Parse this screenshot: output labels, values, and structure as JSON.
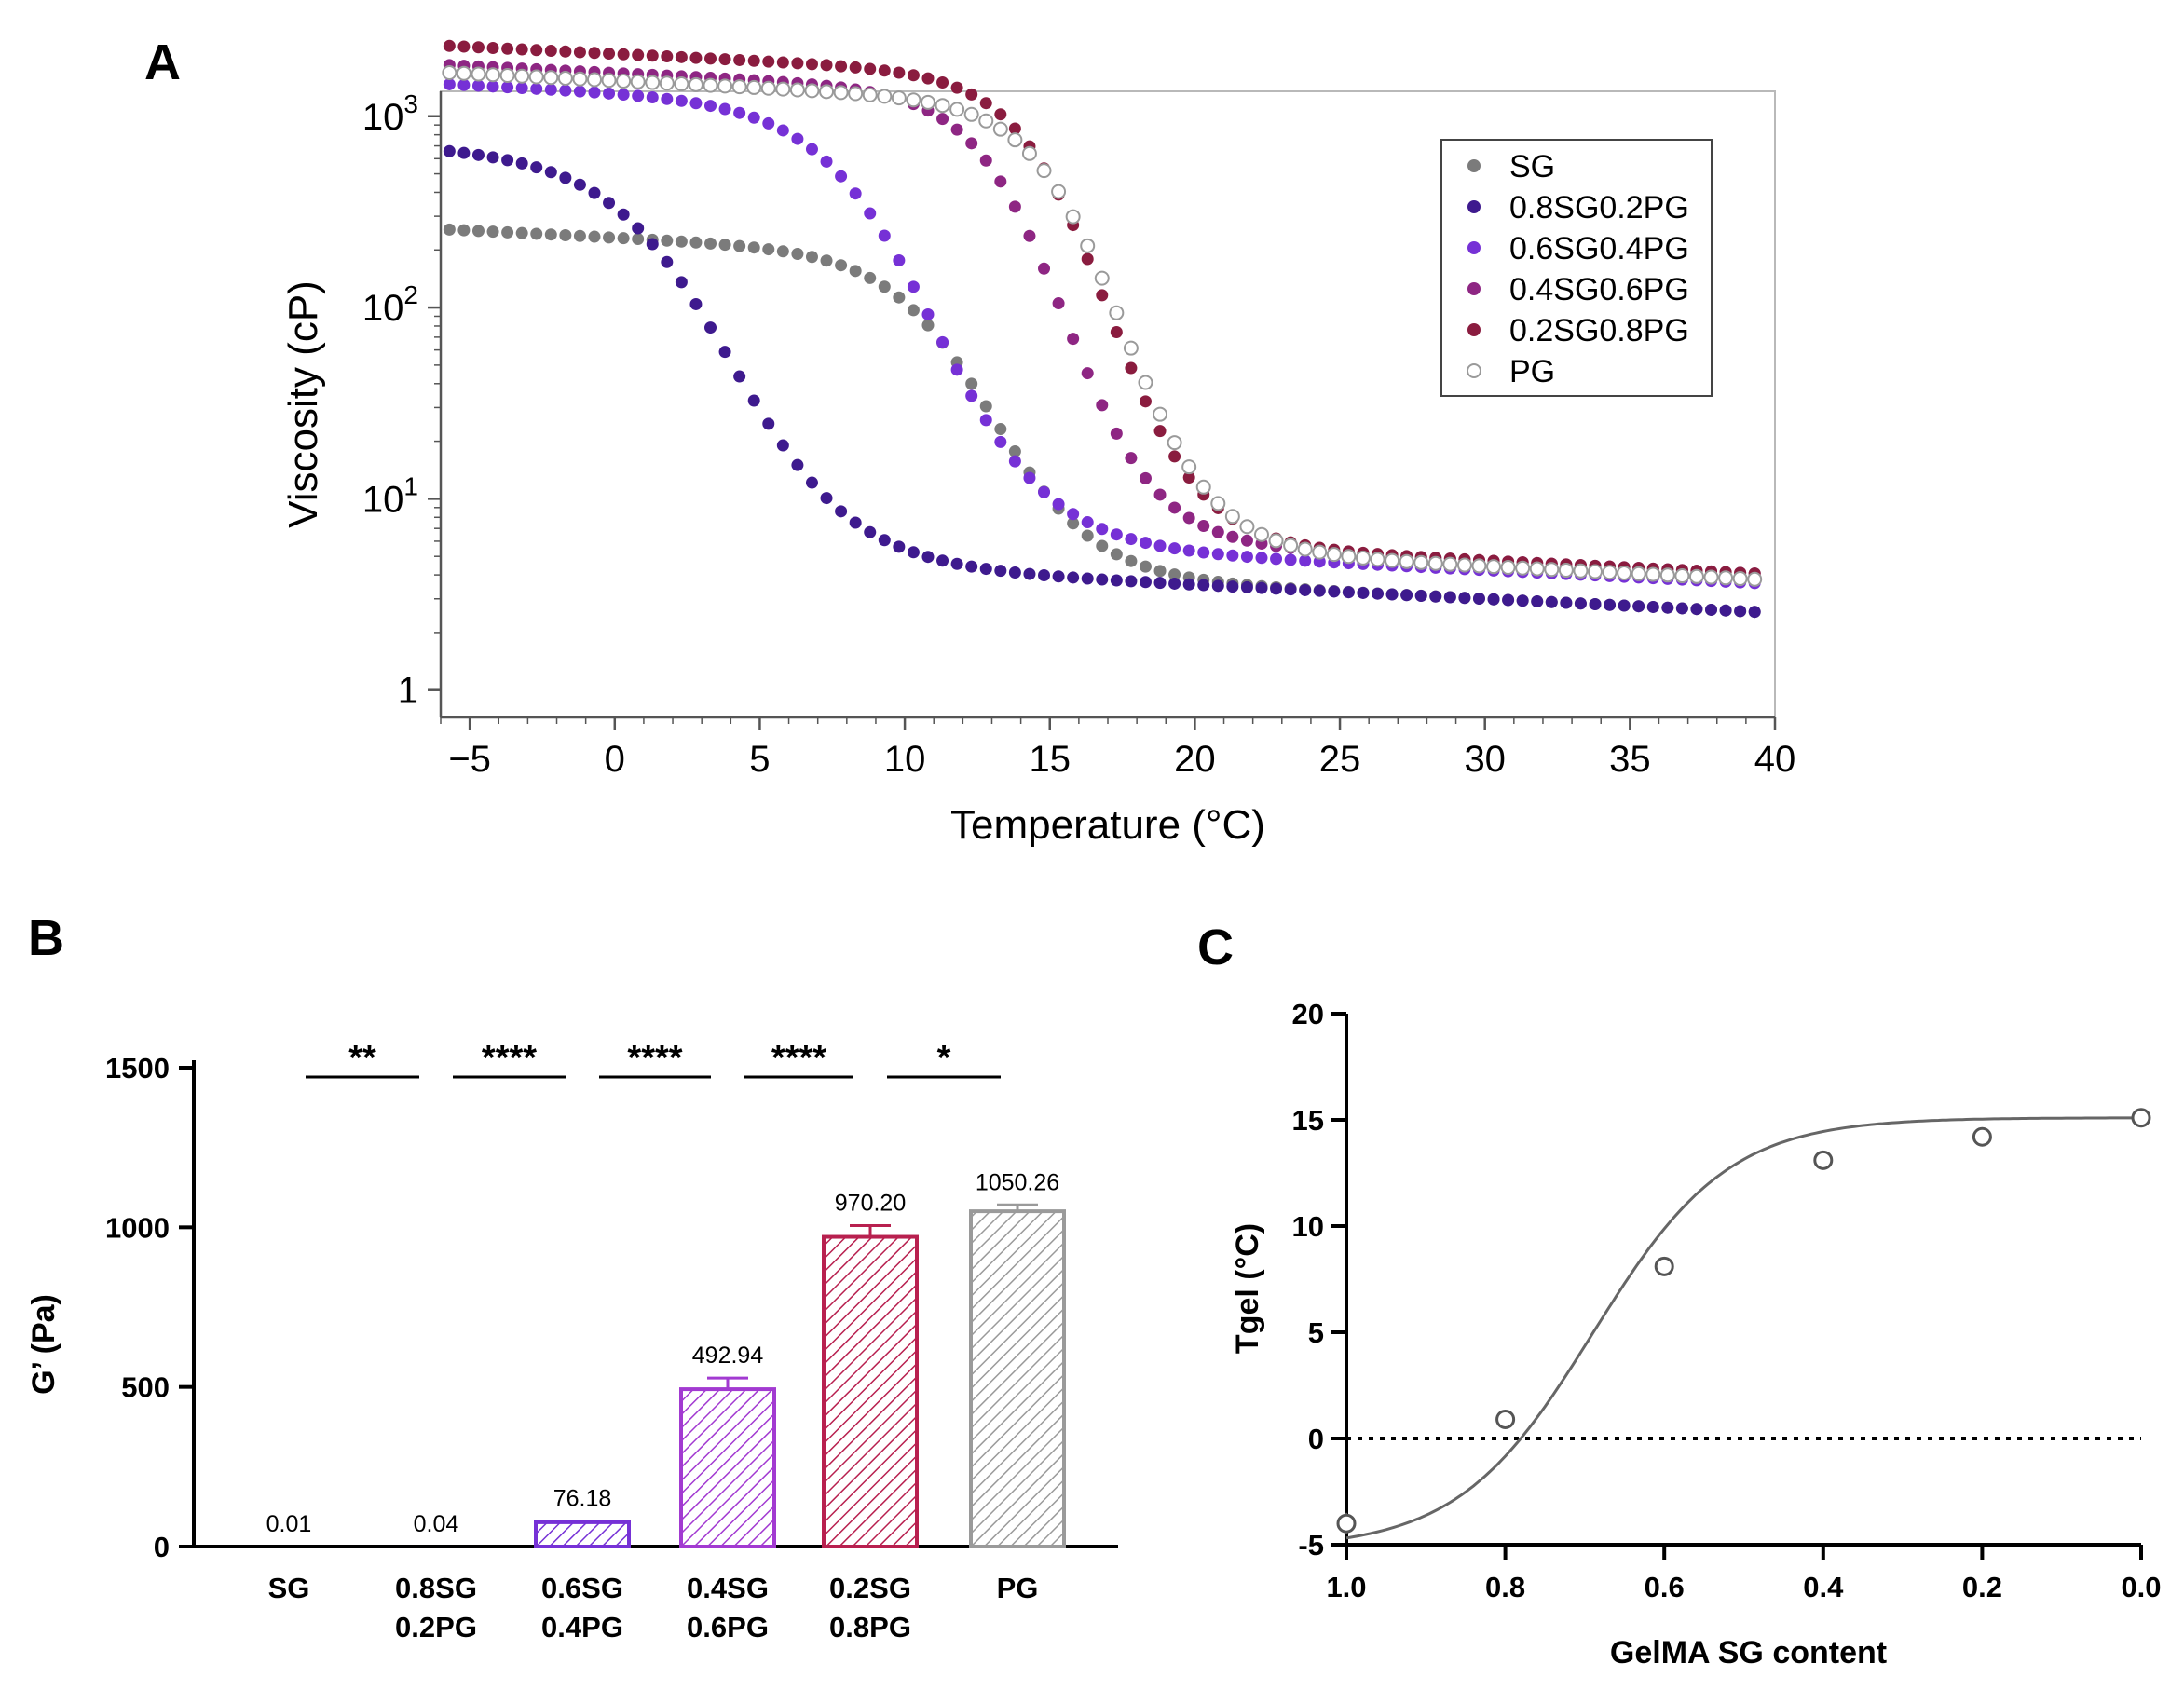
{
  "panels": {
    "a": "A",
    "b": "B",
    "c": "C"
  },
  "chart_data": [
    {
      "type": "scatter",
      "panel": "A",
      "xlabel": "Temperature (°C)",
      "ylabel": "Viscosity (cP)",
      "xlim": [
        -6,
        40
      ],
      "ylim": [
        0.72,
        1350
      ],
      "yscale": "log",
      "xticks": [
        -5,
        0,
        5,
        10,
        15,
        20,
        25,
        30,
        35,
        40
      ],
      "xtick_labels": [
        "−5",
        "0",
        "5",
        "10",
        "15",
        "20",
        "25",
        "30",
        "35",
        "40"
      ],
      "yticks": [
        1,
        10,
        100,
        1000
      ],
      "ytick_labels": [
        {
          "base": "1",
          "exp": ""
        },
        {
          "base": "10",
          "exp": "1"
        },
        {
          "base": "10",
          "exp": "2"
        },
        {
          "base": "10",
          "exp": "3"
        }
      ],
      "legend_position": "top-right",
      "grid": false,
      "series": [
        {
          "name": "SG",
          "color": "#7b7b7b",
          "marker": "filled",
          "T0": 13,
          "logH": 2.22,
          "logL": 0.55,
          "s": 1.8,
          "slope": 0.0073
        },
        {
          "name": "0.8SG0.2PG",
          "color": "#3e1a8e",
          "marker": "filled",
          "T0": 4,
          "logH": 2.65,
          "logL": 0.55,
          "s": 2.1,
          "slope": 0.0073
        },
        {
          "name": "0.6SG0.4PG",
          "color": "#7631d6",
          "marker": "filled",
          "T0": 11,
          "logH": 2.98,
          "logL": 0.7,
          "s": 2.0,
          "slope": 0.0073
        },
        {
          "name": "0.4SG0.6PG",
          "color": "#8e2683",
          "marker": "filled",
          "T0": 15.5,
          "logH": 3.08,
          "logL": 0.75,
          "s": 1.6,
          "slope": 0.0073
        },
        {
          "name": "0.2SG0.8PG",
          "color": "#8a1c3f",
          "marker": "filled",
          "T0": 17,
          "logH": 3.18,
          "logL": 0.75,
          "s": 1.6,
          "slope": 0.0073
        },
        {
          "name": "PG",
          "color": "#9a9a9a",
          "marker": "open",
          "T0": 17.5,
          "logH": 3.04,
          "logL": 0.72,
          "s": 1.6,
          "slope": 0.0073
        }
      ]
    },
    {
      "type": "bar",
      "panel": "B",
      "ylabel": "G’ (Pa)",
      "ylim": [
        0,
        1500
      ],
      "yticks": [
        0,
        500,
        1000,
        1500
      ],
      "categories": [
        {
          "line1": "SG",
          "line2": ""
        },
        {
          "line1": "0.8SG",
          "line2": "0.2PG"
        },
        {
          "line1": "0.6SG",
          "line2": "0.4PG"
        },
        {
          "line1": "0.4SG",
          "line2": "0.6PG"
        },
        {
          "line1": "0.2SG",
          "line2": "0.8PG"
        },
        {
          "line1": "PG",
          "line2": ""
        }
      ],
      "values": [
        0.01,
        0.04,
        76.18,
        492.94,
        970.2,
        1050.26
      ],
      "errors": [
        0,
        0,
        4,
        35,
        35,
        20
      ],
      "value_labels": [
        "0.01",
        "0.04",
        "76.18",
        "492.94",
        "970.20",
        "1050.26"
      ],
      "colors": [
        "#7b7b7b",
        "#3e1a8e",
        "#7631d6",
        "#a23ad1",
        "#b8204f",
        "#9a9a9a"
      ],
      "significance": [
        "**",
        "****",
        "****",
        "****",
        "*"
      ]
    },
    {
      "type": "scatter",
      "panel": "C",
      "xlabel": "GelMA SG content",
      "ylabel": "Tgel (°C)",
      "xlim": [
        1.0,
        0.0
      ],
      "ylim": [
        -5,
        20
      ],
      "xticks": [
        1.0,
        0.8,
        0.6,
        0.4,
        0.2,
        0.0
      ],
      "xtick_labels": [
        "1.0",
        "0.8",
        "0.6",
        "0.4",
        "0.2",
        "0.0"
      ],
      "yticks": [
        -5,
        0,
        5,
        10,
        15,
        20
      ],
      "x": [
        1.0,
        0.8,
        0.6,
        0.4,
        0.2,
        0.0
      ],
      "y": [
        -4.0,
        0.9,
        8.1,
        13.1,
        14.2,
        15.1
      ],
      "y_errors": [
        0.5,
        0.2,
        0.2,
        0.2,
        0.2,
        0.2
      ],
      "fit": {
        "bottom": -5.2,
        "top": 15.1,
        "x50": 0.69,
        "slope": 0.085
      },
      "reference_line_y": 0,
      "marker": "open-circle"
    }
  ]
}
